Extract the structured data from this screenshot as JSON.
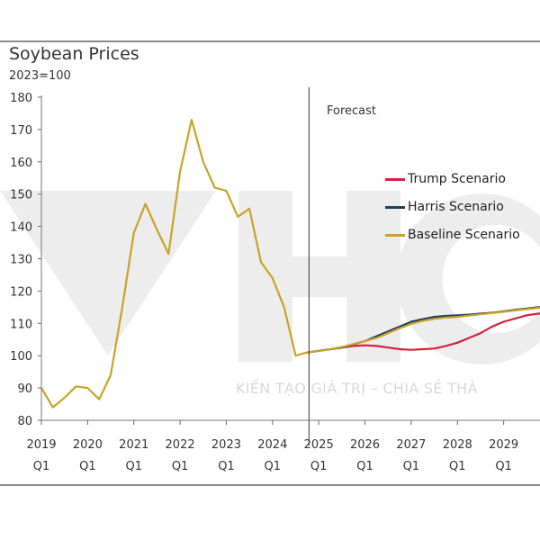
{
  "chart_data": {
    "type": "line",
    "title": "Soybean Prices",
    "subtitle": "2023=100",
    "annotation": "Forecast",
    "watermark": "KIẾN TẠO GIÁ TRỊ – CHIA SẺ THÀ",
    "ylim": [
      80,
      180
    ],
    "yticks": [
      80,
      90,
      100,
      110,
      120,
      130,
      140,
      150,
      160,
      170,
      180
    ],
    "xlim": [
      2019.0,
      2030.0
    ],
    "xticks": [
      {
        "x": 2019.0,
        "year": "2019",
        "q": "Q1"
      },
      {
        "x": 2020.0,
        "year": "2020",
        "q": "Q1"
      },
      {
        "x": 2021.0,
        "year": "2021",
        "q": "Q1"
      },
      {
        "x": 2022.0,
        "year": "2022",
        "q": "Q1"
      },
      {
        "x": 2023.0,
        "year": "2023",
        "q": "Q1"
      },
      {
        "x": 2024.0,
        "year": "2024",
        "q": "Q1"
      },
      {
        "x": 2025.0,
        "year": "2025",
        "q": "Q1"
      },
      {
        "x": 2026.0,
        "year": "2026",
        "q": "Q1"
      },
      {
        "x": 2027.0,
        "year": "2027",
        "q": "Q1"
      },
      {
        "x": 2028.0,
        "year": "2028",
        "q": "Q1"
      },
      {
        "x": 2029.0,
        "year": "2029",
        "q": "Q1"
      }
    ],
    "forecast_start": 2024.75,
    "history": {
      "name": "Baseline Scenario",
      "color": "#c9a227",
      "x": [
        2019.0,
        2019.25,
        2019.5,
        2019.75,
        2020.0,
        2020.25,
        2020.5,
        2020.75,
        2021.0,
        2021.25,
        2021.5,
        2021.75,
        2022.0,
        2022.25,
        2022.5,
        2022.75,
        2023.0,
        2023.25,
        2023.5,
        2023.75,
        2024.0,
        2024.25,
        2024.5,
        2024.75
      ],
      "values": [
        90,
        84,
        87,
        90.5,
        90,
        86.5,
        94,
        115,
        138,
        147,
        139,
        131.5,
        157,
        173,
        160,
        152,
        151,
        143,
        145.5,
        129,
        124,
        115,
        100,
        101
      ]
    },
    "series": [
      {
        "name": "Trump Scenario",
        "color": "#d4213d",
        "x": [
          2024.75,
          2025.0,
          2025.25,
          2025.5,
          2025.75,
          2026.0,
          2026.25,
          2026.5,
          2026.75,
          2027.0,
          2027.25,
          2027.5,
          2027.75,
          2028.0,
          2028.25,
          2028.5,
          2028.75,
          2029.0,
          2029.25,
          2029.5,
          2029.75,
          2030.0
        ],
        "values": [
          101,
          101.5,
          102,
          102.5,
          103,
          103.2,
          103,
          102.5,
          102,
          101.8,
          102,
          102.2,
          103,
          104,
          105.5,
          107,
          109,
          110.5,
          111.5,
          112.5,
          113,
          113.5
        ]
      },
      {
        "name": "Harris Scenario",
        "color": "#1f3f5a",
        "x": [
          2024.75,
          2025.0,
          2025.25,
          2025.5,
          2025.75,
          2026.0,
          2026.25,
          2026.5,
          2026.75,
          2027.0,
          2027.25,
          2027.5,
          2027.75,
          2028.0,
          2028.25,
          2028.5,
          2028.75,
          2029.0,
          2029.25,
          2029.5,
          2029.75,
          2030.0
        ],
        "values": [
          101,
          101.5,
          102,
          102.5,
          103.5,
          104.5,
          106,
          107.5,
          109,
          110.5,
          111.3,
          112,
          112.3,
          112.5,
          112.7,
          113,
          113.3,
          113.7,
          114.2,
          114.6,
          115,
          115.3
        ]
      },
      {
        "name": "Baseline Scenario",
        "color": "#c9a227",
        "x": [
          2024.75,
          2025.0,
          2025.25,
          2025.5,
          2025.75,
          2026.0,
          2026.25,
          2026.5,
          2026.75,
          2027.0,
          2027.25,
          2027.5,
          2027.75,
          2028.0,
          2028.25,
          2028.5,
          2028.75,
          2029.0,
          2029.25,
          2029.5,
          2029.75,
          2030.0
        ],
        "values": [
          101,
          101.5,
          102,
          102.7,
          103.6,
          104.5,
          105.5,
          107,
          108.5,
          109.8,
          110.8,
          111.4,
          111.8,
          112,
          112.4,
          112.8,
          113.2,
          113.6,
          114,
          114.4,
          114.8,
          115.2
        ]
      }
    ],
    "legend": [
      {
        "name": "Trump Scenario",
        "color": "#d4213d"
      },
      {
        "name": "Harris Scenario",
        "color": "#1f3f5a"
      },
      {
        "name": "Baseline Scenario",
        "color": "#c9a227"
      }
    ]
  }
}
